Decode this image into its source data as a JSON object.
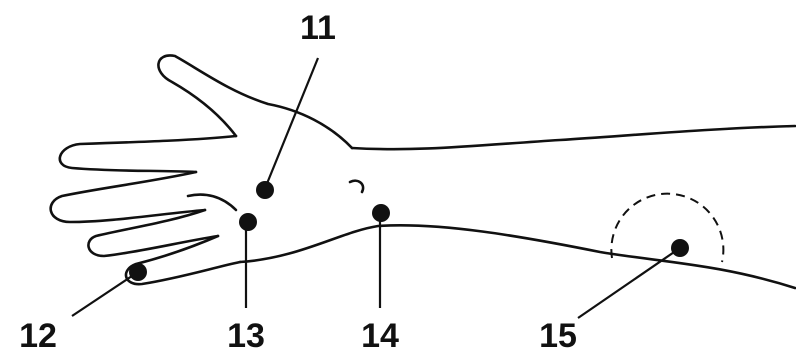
{
  "points": [
    {
      "label": "11"
    },
    {
      "label": "12"
    },
    {
      "label": "13"
    },
    {
      "label": "14"
    },
    {
      "label": "15"
    }
  ]
}
